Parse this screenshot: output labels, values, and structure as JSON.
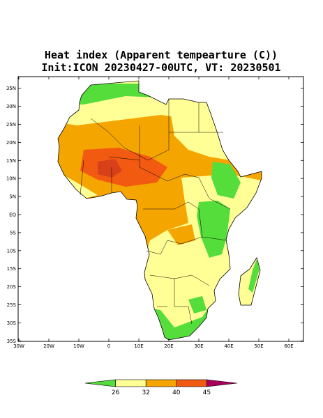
{
  "title": "Heat index (Apparent tempearture (C))",
  "subtitle": "Init:ICON 20230427-00UTC, VT: 20230501",
  "map": {
    "lat_ticks": [
      {
        "value": 35,
        "label": "35N"
      },
      {
        "value": 30,
        "label": "30N"
      },
      {
        "value": 25,
        "label": "25N"
      },
      {
        "value": 20,
        "label": "20N"
      },
      {
        "value": 15,
        "label": "15N"
      },
      {
        "value": 10,
        "label": "10N"
      },
      {
        "value": 5,
        "label": "5N"
      },
      {
        "value": 0,
        "label": "EQ"
      },
      {
        "value": -5,
        "label": "5S"
      },
      {
        "value": -10,
        "label": "10S"
      },
      {
        "value": -15,
        "label": "15S"
      },
      {
        "value": -20,
        "label": "20S"
      },
      {
        "value": -25,
        "label": "25S"
      },
      {
        "value": -30,
        "label": "30S"
      },
      {
        "value": -35,
        "label": "35S"
      }
    ],
    "lon_ticks": [
      {
        "value": -30,
        "label": "30W"
      },
      {
        "value": -20,
        "label": "20W"
      },
      {
        "value": -10,
        "label": "10W"
      },
      0,
      {
        "value": 10,
        "label": "10E"
      },
      {
        "value": 20,
        "label": "20E"
      },
      {
        "value": 30,
        "label": "30E"
      },
      {
        "value": 40,
        "label": "40E"
      },
      {
        "value": 50,
        "label": "50E"
      },
      {
        "value": 60,
        "label": "60E"
      }
    ]
  },
  "colorbar": {
    "levels": [
      26,
      32,
      40,
      45
    ],
    "colors": [
      "#55dd3c",
      "#ffff96",
      "#f5a500",
      "#f25a12",
      "#a8005a"
    ]
  }
}
